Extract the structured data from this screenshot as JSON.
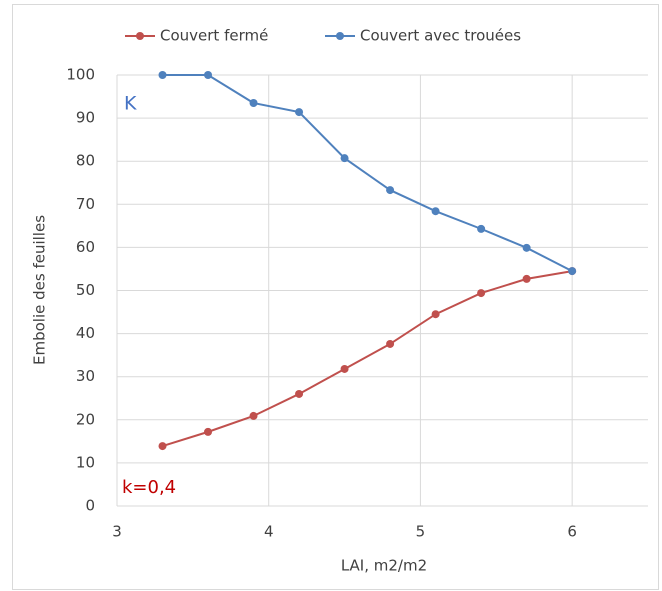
{
  "chart_data": {
    "type": "line",
    "x_label": "LAI, m2/m2",
    "y_label": "Embolie des feuilles",
    "x": [
      3.3,
      3.6,
      3.9,
      4.2,
      4.5,
      4.8,
      5.1,
      5.4,
      5.7,
      6.0
    ],
    "series": [
      {
        "name": "Couvert fermé",
        "color": "#c0504d",
        "values": [
          13.9,
          17.2,
          20.9,
          26,
          31.8,
          37.6,
          44.5,
          49.4,
          52.7,
          54.5
        ]
      },
      {
        "name": "Couvert avec trouées",
        "color": "#4f81bd",
        "values": [
          100,
          100,
          93.5,
          91.4,
          80.7,
          73.3,
          68.4,
          64.3,
          59.9,
          54.5
        ]
      }
    ],
    "xlim": [
      3,
      6.5
    ],
    "xticks": [
      3,
      4,
      5,
      6
    ],
    "ylim": [
      0,
      100
    ],
    "yticks": [
      0,
      10,
      20,
      30,
      40,
      50,
      60,
      70,
      80,
      90,
      100
    ],
    "grid": true,
    "legend": "top",
    "annotations": [
      {
        "text": "K",
        "color": "#4472c4"
      },
      {
        "text": "k=0,4",
        "color": "#c00000"
      }
    ]
  }
}
